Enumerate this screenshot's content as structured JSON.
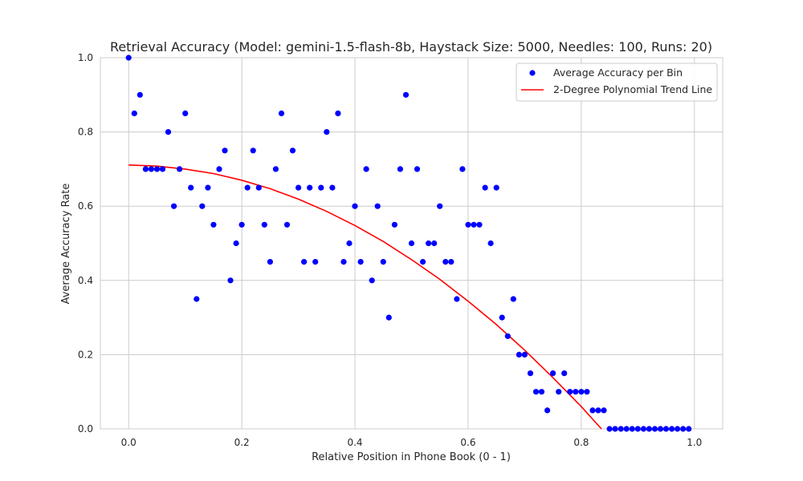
{
  "chart_data": {
    "type": "scatter",
    "title": "Retrieval Accuracy (Model: gemini-1.5-flash-8b, Haystack Size: 5000, Needles: 100, Runs: 20)",
    "xlabel": "Relative Position in Phone Book (0 - 1)",
    "ylabel": "Average Accuracy Rate",
    "xlim": [
      -0.05,
      1.05
    ],
    "ylim": [
      0.0,
      1.0
    ],
    "xticks": [
      "0.0",
      "0.2",
      "0.4",
      "0.6",
      "0.8",
      "1.0"
    ],
    "yticks": [
      "0.0",
      "0.2",
      "0.4",
      "0.6",
      "0.8",
      "1.0"
    ],
    "grid": true,
    "legend_position": "top-right",
    "series": [
      {
        "name": "Average Accuracy per Bin",
        "kind": "scatter",
        "color": "#0000ff",
        "x": [
          0.0,
          0.01,
          0.02,
          0.03,
          0.04,
          0.05,
          0.06,
          0.07,
          0.08,
          0.09,
          0.1,
          0.11,
          0.12,
          0.13,
          0.14,
          0.15,
          0.16,
          0.17,
          0.18,
          0.19,
          0.2,
          0.21,
          0.22,
          0.23,
          0.24,
          0.25,
          0.26,
          0.27,
          0.28,
          0.29,
          0.3,
          0.31,
          0.32,
          0.33,
          0.34,
          0.35,
          0.36,
          0.37,
          0.38,
          0.39,
          0.4,
          0.41,
          0.42,
          0.43,
          0.44,
          0.45,
          0.46,
          0.47,
          0.48,
          0.49,
          0.5,
          0.51,
          0.52,
          0.53,
          0.54,
          0.55,
          0.56,
          0.57,
          0.58,
          0.59,
          0.6,
          0.61,
          0.62,
          0.63,
          0.64,
          0.65,
          0.66,
          0.67,
          0.68,
          0.69,
          0.7,
          0.71,
          0.72,
          0.73,
          0.74,
          0.75,
          0.76,
          0.77,
          0.78,
          0.79,
          0.8,
          0.81,
          0.82,
          0.83,
          0.84,
          0.85,
          0.86,
          0.87,
          0.88,
          0.89,
          0.9,
          0.91,
          0.92,
          0.93,
          0.94,
          0.95,
          0.96,
          0.97,
          0.98,
          0.99
        ],
        "y": [
          1.0,
          0.85,
          0.9,
          0.7,
          0.7,
          0.7,
          0.7,
          0.8,
          0.6,
          0.7,
          0.85,
          0.65,
          0.35,
          0.6,
          0.65,
          0.55,
          0.7,
          0.75,
          0.4,
          0.5,
          0.55,
          0.65,
          0.75,
          0.65,
          0.55,
          0.45,
          0.7,
          0.85,
          0.55,
          0.75,
          0.65,
          0.45,
          0.65,
          0.45,
          0.65,
          0.8,
          0.65,
          0.85,
          0.45,
          0.5,
          0.6,
          0.45,
          0.7,
          0.4,
          0.6,
          0.45,
          0.3,
          0.55,
          0.7,
          0.9,
          0.5,
          0.7,
          0.45,
          0.5,
          0.5,
          0.6,
          0.45,
          0.45,
          0.35,
          0.7,
          0.55,
          0.55,
          0.55,
          0.65,
          0.5,
          0.65,
          0.3,
          0.25,
          0.35,
          0.2,
          0.2,
          0.15,
          0.1,
          0.1,
          0.05,
          0.15,
          0.1,
          0.15,
          0.1,
          0.1,
          0.1,
          0.1,
          0.05,
          0.05,
          0.05,
          0.0,
          0.0,
          0.0,
          0.0,
          0.0,
          0.0,
          0.0,
          0.0,
          0.0,
          0.0,
          0.0,
          0.0,
          0.0,
          0.0,
          0.0
        ]
      },
      {
        "name": "2-Degree Polynomial Trend Line",
        "kind": "line",
        "color": "#ff0000",
        "x": [
          0.0,
          0.05,
          0.1,
          0.15,
          0.2,
          0.25,
          0.3,
          0.35,
          0.4,
          0.45,
          0.5,
          0.55,
          0.6,
          0.65,
          0.7,
          0.75,
          0.8,
          0.85,
          0.905
        ],
        "y": [
          0.711,
          0.708,
          0.7,
          0.688,
          0.67,
          0.647,
          0.619,
          0.586,
          0.548,
          0.505,
          0.456,
          0.403,
          0.344,
          0.281,
          0.212,
          0.138,
          0.06,
          -0.024,
          -0.122
        ],
        "clip_at_zero": true
      }
    ]
  }
}
